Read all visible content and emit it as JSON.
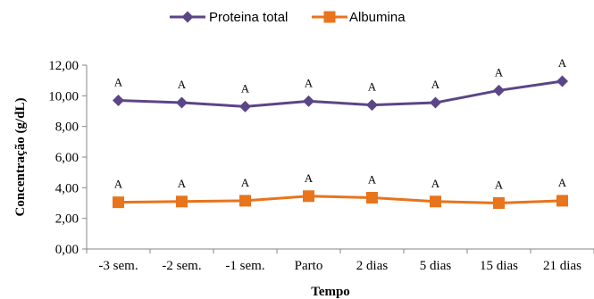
{
  "chart_data": {
    "type": "line",
    "categories": [
      "-3 sem.",
      "-2 sem.",
      "-1 sem.",
      "Parto",
      "2 dias",
      "5 dias",
      "15 dias",
      "21 dias"
    ],
    "series": [
      {
        "name": "Proteina total",
        "values": [
          9.7,
          9.55,
          9.3,
          9.65,
          9.4,
          9.55,
          10.35,
          10.95
        ],
        "labels": [
          "A",
          "A",
          "A",
          "A",
          "A",
          "A",
          "A",
          "A"
        ],
        "color": "#5B4586",
        "marker": "diamond"
      },
      {
        "name": "Albumina",
        "values": [
          3.05,
          3.1,
          3.15,
          3.45,
          3.35,
          3.1,
          3.0,
          3.15
        ],
        "labels": [
          "A",
          "A",
          "A",
          "A",
          "A",
          "A",
          "A",
          "A"
        ],
        "color": "#E8741C",
        "marker": "square"
      }
    ],
    "yticks": [
      "0,00",
      "2,00",
      "4,00",
      "6,00",
      "8,00",
      "10,00",
      "12,00"
    ],
    "ylim": [
      0,
      12
    ],
    "xlabel": "Tempo",
    "ylabel": "Concentração (g/dL)",
    "legend_position": "top",
    "grid": false
  }
}
